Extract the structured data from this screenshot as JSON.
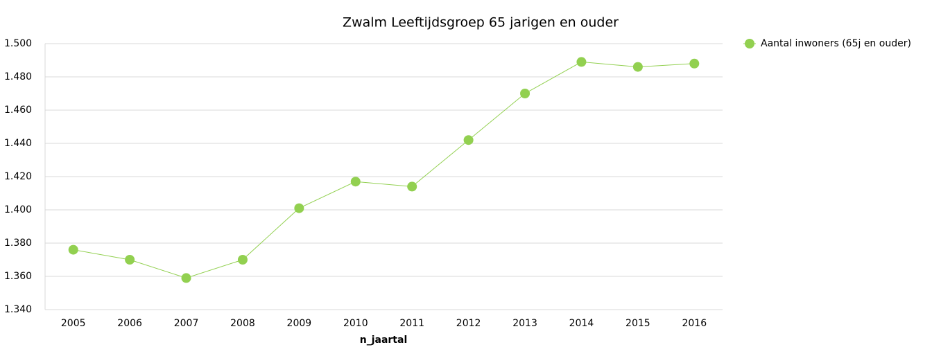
{
  "chart_data": {
    "type": "line",
    "title": "Zwalm  Leeftijdsgroep 65 jarigen en ouder",
    "x_label": "n_jaartal",
    "categories": [
      "2005",
      "2006",
      "2007",
      "2008",
      "2009",
      "2010",
      "2011",
      "2012",
      "2013",
      "2014",
      "2015",
      "2016"
    ],
    "series": [
      {
        "name": "Aantal inwoners (65j en ouder)",
        "color": "#92d050",
        "values": [
          1376,
          1370,
          1359,
          1370,
          1401,
          1417,
          1414,
          1442,
          1470,
          1489,
          1486,
          1488
        ]
      }
    ],
    "ylim": [
      1340,
      1500
    ],
    "yticks": [
      {
        "value": 1340,
        "label": "1.340"
      },
      {
        "value": 1360,
        "label": "1.360"
      },
      {
        "value": 1380,
        "label": "1.380"
      },
      {
        "value": 1400,
        "label": "1.400"
      },
      {
        "value": 1420,
        "label": "1.420"
      },
      {
        "value": 1440,
        "label": "1.440"
      },
      {
        "value": 1460,
        "label": "1.460"
      },
      {
        "value": 1480,
        "label": "1.480"
      },
      {
        "value": 1500,
        "label": "1.500"
      }
    ],
    "grid": true,
    "legend": "right"
  }
}
